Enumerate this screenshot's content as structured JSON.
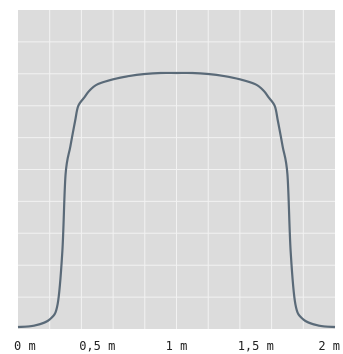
{
  "chart_data": {
    "type": "line",
    "title": "",
    "xlabel": "",
    "ylabel": "",
    "xlim": [
      0,
      2
    ],
    "ylim": [
      0,
      1
    ],
    "grid": true,
    "x_ticks": [
      {
        "value": 0,
        "label": "0 m"
      },
      {
        "value": 0.5,
        "label": "0,5 m"
      },
      {
        "value": 1,
        "label": "1 m"
      },
      {
        "value": 1.5,
        "label": "1,5 m"
      },
      {
        "value": 2,
        "label": "2 m"
      }
    ],
    "series": [
      {
        "color": "#5a6a78",
        "x": [
          0,
          0.1,
          0.2,
          0.25,
          0.28,
          0.3,
          0.33,
          0.36,
          0.38,
          0.42,
          0.45,
          0.5,
          0.6,
          0.7,
          0.8,
          0.9,
          1.0,
          1.1,
          1.2,
          1.3,
          1.4,
          1.5,
          1.55,
          1.58,
          1.62,
          1.64,
          1.67,
          1.7,
          1.72,
          1.75,
          1.8,
          1.9,
          2.0
        ],
        "y": [
          0.0,
          0.005,
          0.03,
          0.09,
          0.3,
          0.6,
          0.71,
          0.81,
          0.87,
          0.905,
          0.93,
          0.955,
          0.975,
          0.988,
          0.996,
          1.0,
          1.0,
          1.0,
          0.996,
          0.988,
          0.975,
          0.955,
          0.93,
          0.905,
          0.87,
          0.81,
          0.71,
          0.6,
          0.3,
          0.09,
          0.03,
          0.005,
          0.0
        ]
      }
    ]
  }
}
